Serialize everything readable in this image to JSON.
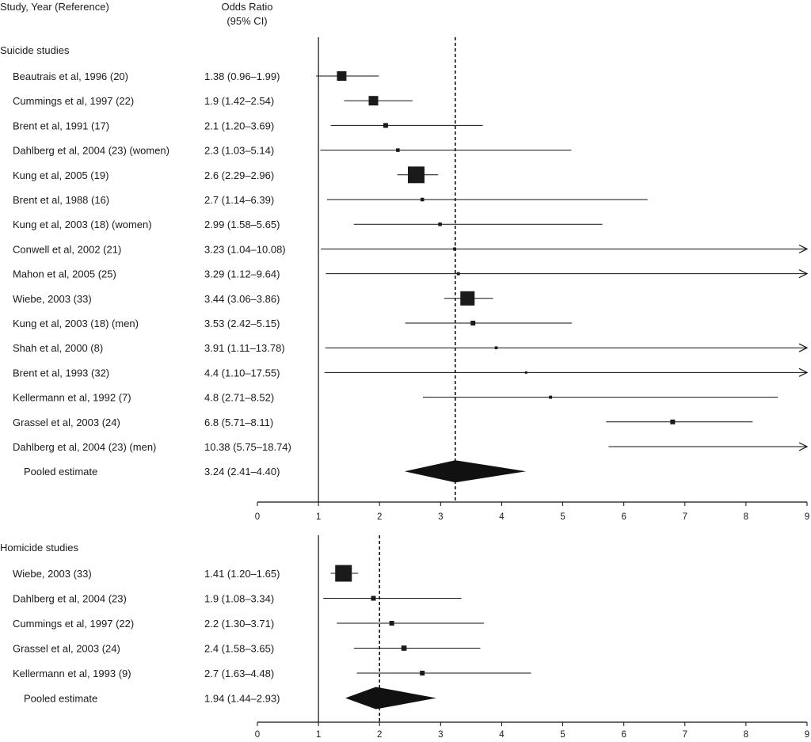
{
  "header": {
    "study_col": "Study, Year (Reference)",
    "or_col_line1": "Odds Ratio",
    "or_col_line2": "(95% CI)"
  },
  "chart_data": [
    {
      "type": "forest",
      "section_title": "Suicide studies",
      "x_axis": {
        "min": 0,
        "max": 9,
        "ticks": [
          0,
          1,
          2,
          3,
          4,
          5,
          6,
          7,
          8,
          9
        ]
      },
      "reference_line_x": 3.24,
      "studies": [
        {
          "label": "Beautrais et al, 1996 (20)",
          "ci_text": "1.38 (0.96–1.99)",
          "or": 1.38,
          "lo": 0.96,
          "hi": 1.99,
          "weight": 3
        },
        {
          "label": "Cummings et al, 1997 (22)",
          "ci_text": "1.9 (1.42–2.54)",
          "or": 1.9,
          "lo": 1.42,
          "hi": 2.54,
          "weight": 3
        },
        {
          "label": "Brent et al, 1991 (17)",
          "ci_text": "2.1 (1.20–3.69)",
          "or": 2.1,
          "lo": 1.2,
          "hi": 3.69,
          "weight": 1
        },
        {
          "label": "Dahlberg et al, 2004 (23) (women)",
          "ci_text": "2.3 (1.03–5.14)",
          "or": 2.3,
          "lo": 1.03,
          "hi": 5.14,
          "weight": 0.5
        },
        {
          "label": "Kung et al, 2005 (19)",
          "ci_text": "2.6 (2.29–2.96)",
          "or": 2.6,
          "lo": 2.29,
          "hi": 2.96,
          "weight": 6
        },
        {
          "label": "Brent et al, 1988 (16)",
          "ci_text": "2.7 (1.14–6.39)",
          "or": 2.7,
          "lo": 1.14,
          "hi": 6.39,
          "weight": 0.5
        },
        {
          "label": "Kung et al, 2003 (18) (women)",
          "ci_text": "2.99 (1.58–5.65)",
          "or": 2.99,
          "lo": 1.58,
          "hi": 5.65,
          "weight": 0.5
        },
        {
          "label": "Conwell et al, 2002 (21)",
          "ci_text": "3.23 (1.04–10.08)",
          "or": 3.23,
          "lo": 1.04,
          "hi": 10.08,
          "weight": 0.3
        },
        {
          "label": "Mahon et al, 2005 (25)",
          "ci_text": "3.29 (1.12–9.64)",
          "or": 3.29,
          "lo": 1.12,
          "hi": 9.64,
          "weight": 0.3
        },
        {
          "label": "Wiebe, 2003 (33)",
          "ci_text": "3.44 (3.06–3.86)",
          "or": 3.44,
          "lo": 3.06,
          "hi": 3.86,
          "weight": 5
        },
        {
          "label": "Kung et al, 2003 (18) (men)",
          "ci_text": "3.53 (2.42–5.15)",
          "or": 3.53,
          "lo": 2.42,
          "hi": 5.15,
          "weight": 1
        },
        {
          "label": "Shah et al, 2000 (8)",
          "ci_text": "3.91 (1.11–13.78)",
          "or": 3.91,
          "lo": 1.11,
          "hi": 13.78,
          "weight": 0.2
        },
        {
          "label": "Brent et al, 1993 (32)",
          "ci_text": "4.4 (1.10–17.55)",
          "or": 4.4,
          "lo": 1.1,
          "hi": 17.55,
          "weight": 0
        },
        {
          "label": "Kellermann et al, 1992 (7)",
          "ci_text": "4.8 (2.71–8.52)",
          "or": 4.8,
          "lo": 2.71,
          "hi": 8.52,
          "weight": 0.3
        },
        {
          "label": "Grassel et al, 2003 (24)",
          "ci_text": "6.8 (5.71–8.11)",
          "or": 6.8,
          "lo": 5.71,
          "hi": 8.11,
          "weight": 1
        },
        {
          "label": "Dahlberg et al, 2004 (23) (men)",
          "ci_text": "10.38 (5.75–18.74)",
          "or": 10.38,
          "lo": 5.75,
          "hi": 18.74,
          "weight": 0
        }
      ],
      "pooled": {
        "label": "Pooled estimate",
        "ci_text": "3.24 (2.41–4.40)",
        "or": 3.24,
        "lo": 2.41,
        "hi": 4.4
      }
    },
    {
      "type": "forest",
      "section_title": "Homicide studies",
      "x_axis": {
        "min": 0,
        "max": 9,
        "ticks": [
          0,
          1,
          2,
          3,
          4,
          5,
          6,
          7,
          8,
          9
        ]
      },
      "reference_line_x": 2.0,
      "studies": [
        {
          "label": "Wiebe, 2003 (33)",
          "ci_text": "1.41 (1.20–1.65)",
          "or": 1.41,
          "lo": 1.2,
          "hi": 1.65,
          "weight": 6
        },
        {
          "label": "Dahlberg et al, 2004 (23)",
          "ci_text": "1.9 (1.08–3.34)",
          "or": 1.9,
          "lo": 1.08,
          "hi": 3.34,
          "weight": 1
        },
        {
          "label": "Cummings et al, 1997 (22)",
          "ci_text": "2.2 (1.30–3.71)",
          "or": 2.2,
          "lo": 1.3,
          "hi": 3.71,
          "weight": 1
        },
        {
          "label": "Grassel et al, 2003 (24)",
          "ci_text": "2.4 (1.58–3.65)",
          "or": 2.4,
          "lo": 1.58,
          "hi": 3.65,
          "weight": 1.2
        },
        {
          "label": "Kellermann et al, 1993 (9)",
          "ci_text": "2.7 (1.63–4.48)",
          "or": 2.7,
          "lo": 1.63,
          "hi": 4.48,
          "weight": 1
        }
      ],
      "pooled": {
        "label": "Pooled estimate",
        "ci_text": "1.94 (1.44–2.93)",
        "or": 1.94,
        "lo": 1.44,
        "hi": 2.93
      }
    }
  ]
}
